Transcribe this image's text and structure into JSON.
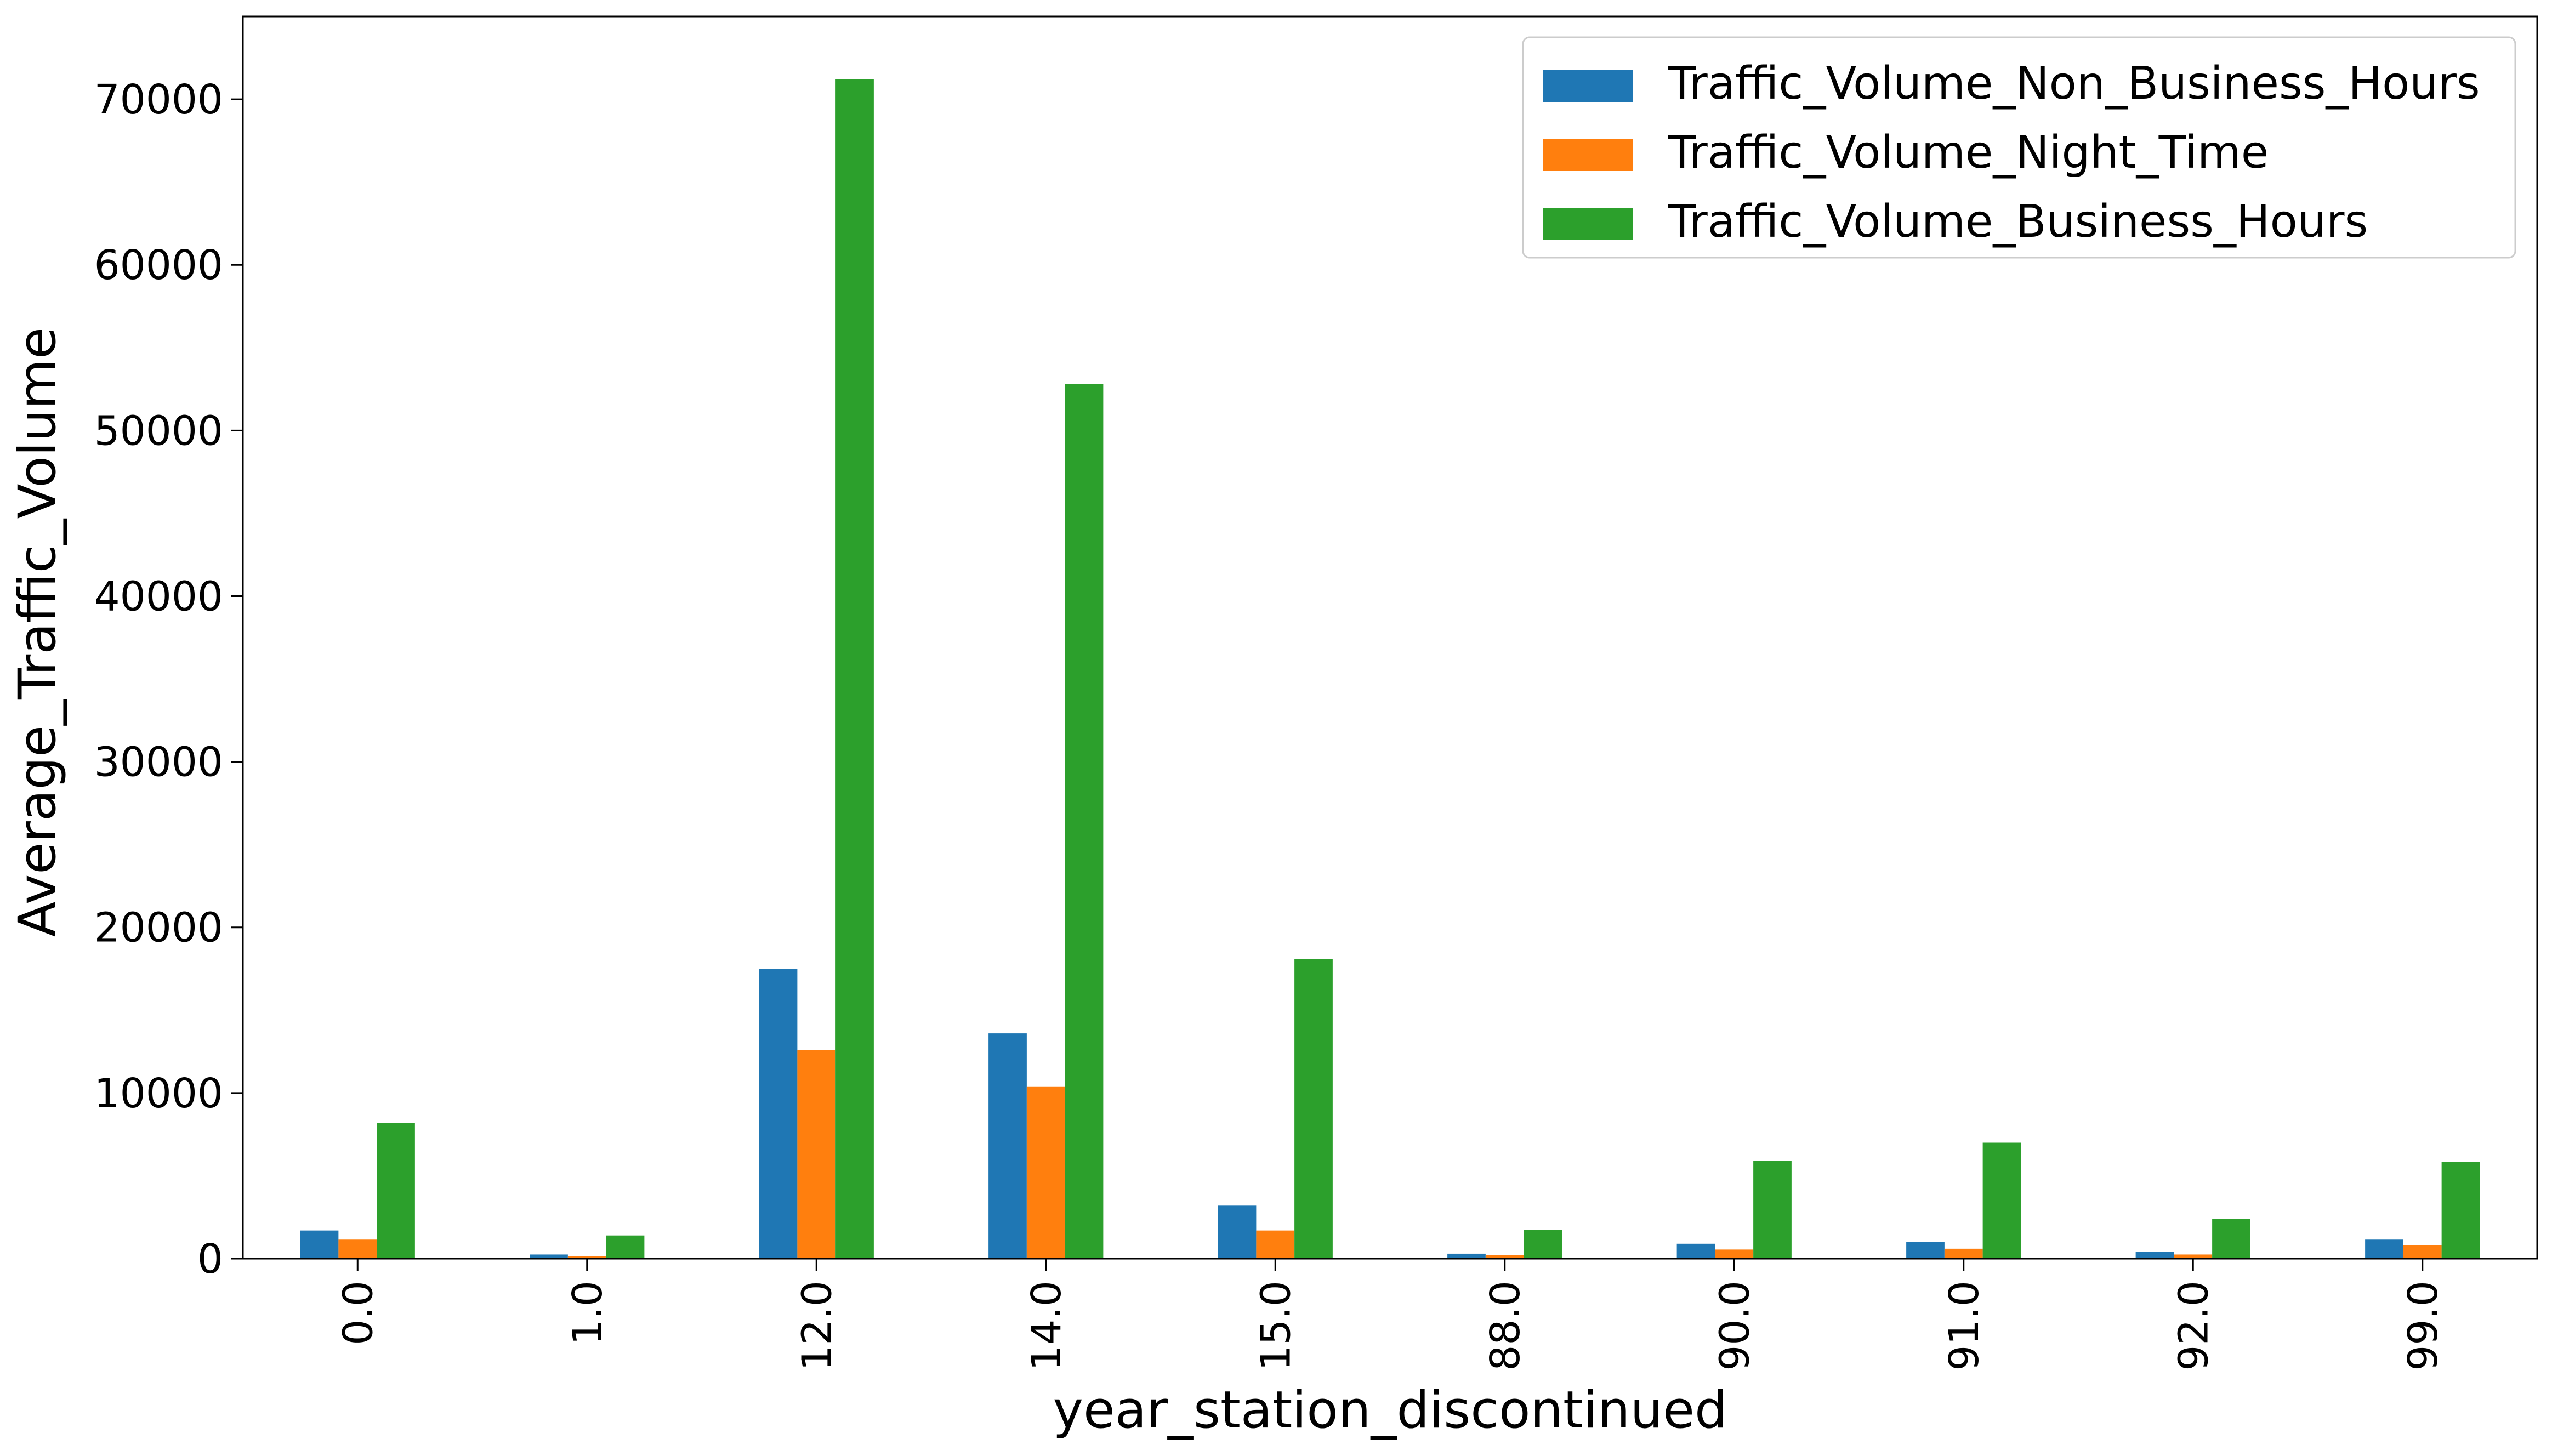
{
  "chart_data": {
    "type": "bar",
    "xlabel": "year_station_discontinued",
    "ylabel": "Average_Traffic_Volume",
    "categories": [
      "0.0",
      "1.0",
      "12.0",
      "14.0",
      "15.0",
      "88.0",
      "90.0",
      "91.0",
      "92.0",
      "99.0"
    ],
    "ylim": [
      0,
      75000
    ],
    "yticks": [
      0,
      10000,
      20000,
      30000,
      40000,
      50000,
      60000,
      70000
    ],
    "ytick_labels": [
      "0",
      "10000",
      "20000",
      "30000",
      "40000",
      "50000",
      "60000",
      "70000"
    ],
    "grid": false,
    "legend_position": "top-right",
    "series": [
      {
        "name": "Traffic_Volume_Non_Business_Hours",
        "color": "#1f77b4",
        "values": [
          1700,
          250,
          17500,
          13600,
          3200,
          300,
          900,
          1000,
          400,
          1150
        ]
      },
      {
        "name": "Traffic_Volume_Night_Time",
        "color": "#ff7f0e",
        "values": [
          1150,
          150,
          12600,
          10400,
          1700,
          200,
          550,
          600,
          250,
          800
        ]
      },
      {
        "name": "Traffic_Volume_Business_Hours",
        "color": "#2ca02c",
        "values": [
          8200,
          1400,
          71200,
          52800,
          18100,
          1750,
          5900,
          7000,
          2400,
          5850
        ]
      }
    ]
  }
}
